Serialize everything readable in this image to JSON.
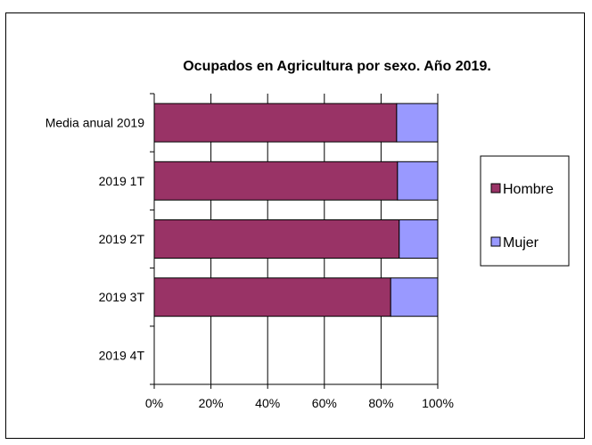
{
  "chart_data": {
    "type": "bar",
    "orientation": "horizontal",
    "stacked": "percent",
    "title": "Ocupados en Agricultura por sexo. Año 2019.",
    "categories": [
      "Media anual 2019",
      "2019 1T",
      "2019 2T",
      "2019 3T",
      "2019 4T"
    ],
    "series": [
      {
        "name": "Hombre",
        "color": "#993366",
        "values": [
          85.5,
          85.8,
          86.4,
          83.4,
          null
        ]
      },
      {
        "name": "Mujer",
        "color": "#9999ff",
        "values": [
          14.5,
          14.2,
          13.6,
          16.6,
          null
        ]
      }
    ],
    "x_ticks": [
      "0%",
      "20%",
      "40%",
      "60%",
      "80%",
      "100%"
    ],
    "xlim": [
      0,
      100
    ],
    "grid": "vertical",
    "legend_position": "right"
  }
}
